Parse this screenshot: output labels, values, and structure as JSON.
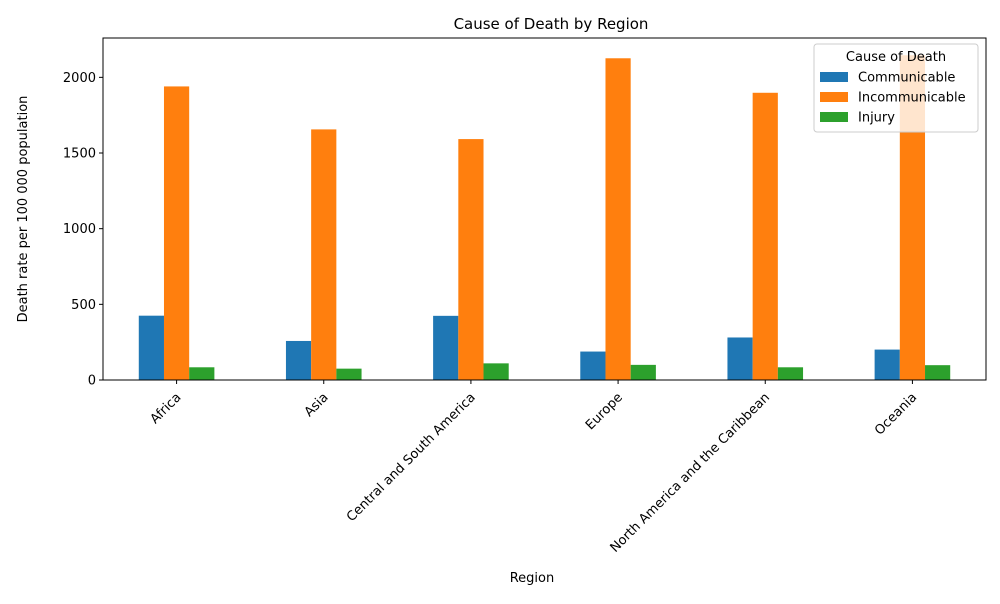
{
  "chart_data": {
    "type": "bar",
    "title": "Cause of Death by Region",
    "xlabel": "Region",
    "ylabel": "Death rate per 100 000 population",
    "categories": [
      "Africa",
      "Asia",
      "Central and South America",
      "Europe",
      "North America and the Caribbean",
      "Oceania"
    ],
    "series": [
      {
        "name": "Communicable",
        "color": "#1f77b4",
        "values": [
          425,
          258,
          424,
          188,
          281,
          201
        ]
      },
      {
        "name": "Incommunicable",
        "color": "#ff7f0e",
        "values": [
          1940,
          1656,
          1592,
          2126,
          1898,
          2146
        ]
      },
      {
        "name": "Injury",
        "color": "#2ca02c",
        "values": [
          84,
          75,
          110,
          100,
          84,
          98
        ]
      }
    ],
    "ylim": [
      0,
      2260
    ],
    "yticks": [
      0,
      500,
      1000,
      1500,
      2000
    ],
    "grid": false,
    "legend": {
      "title": "Cause of Death",
      "position": "top-right"
    }
  }
}
